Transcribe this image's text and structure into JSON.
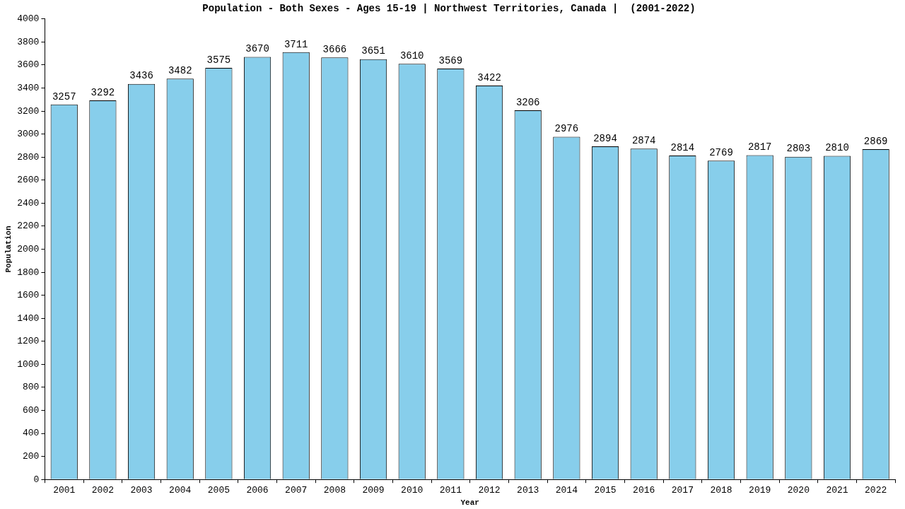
{
  "chart_data": {
    "type": "bar",
    "title": "Population - Both Sexes - Ages 15-19 | Northwest Territories, Canada |  (2001-2022)",
    "x_label": "Year",
    "y_label": "Population",
    "categories": [
      "2001",
      "2002",
      "2003",
      "2004",
      "2005",
      "2006",
      "2007",
      "2008",
      "2009",
      "2010",
      "2011",
      "2012",
      "2013",
      "2014",
      "2015",
      "2016",
      "2017",
      "2018",
      "2019",
      "2020",
      "2021",
      "2022"
    ],
    "values": [
      3257,
      3292,
      3436,
      3482,
      3575,
      3670,
      3711,
      3666,
      3651,
      3610,
      3569,
      3422,
      3206,
      2976,
      2894,
      2874,
      2814,
      2769,
      2817,
      2803,
      2810,
      2869
    ],
    "color": "#87ceeb",
    "ylim": [
      0,
      4000
    ],
    "yticks": [
      0,
      200,
      400,
      600,
      800,
      1000,
      1200,
      1400,
      1600,
      1800,
      2000,
      2200,
      2400,
      2600,
      2800,
      3000,
      3200,
      3400,
      3600,
      3800,
      4000
    ],
    "grid": false,
    "data_labels": true
  }
}
